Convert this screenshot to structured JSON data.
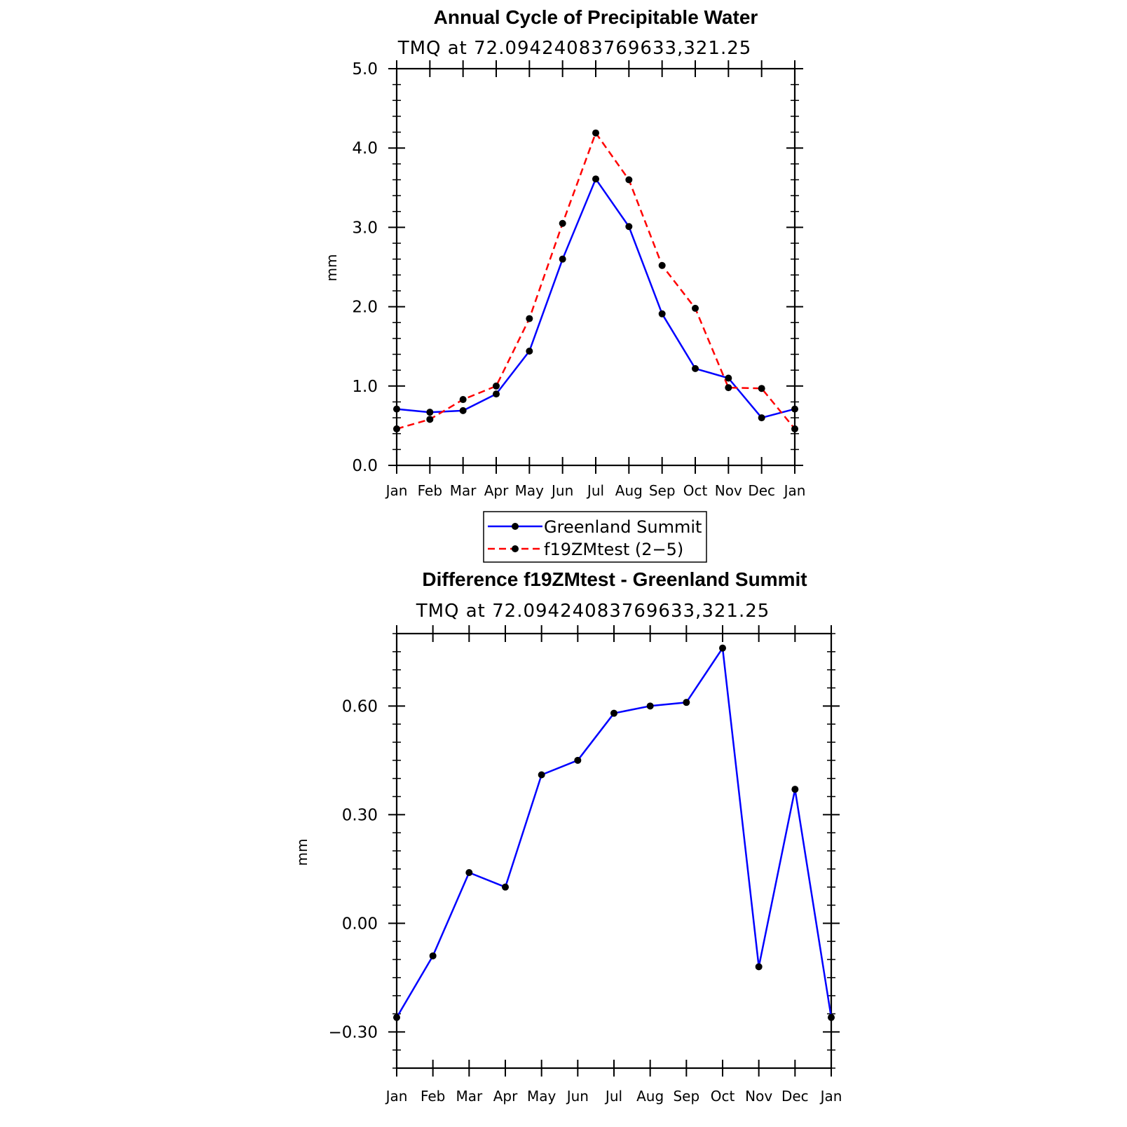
{
  "chart_data": [
    {
      "type": "line",
      "title": "Annual Cycle of Precipitable Water",
      "subtitle": "TMQ at 72.09424083769633,321.25",
      "xlabel": "",
      "ylabel": "mm",
      "categories": [
        "Jan",
        "Feb",
        "Mar",
        "Apr",
        "May",
        "Jun",
        "Jul",
        "Aug",
        "Sep",
        "Oct",
        "Nov",
        "Dec",
        "Jan"
      ],
      "ylim": [
        0.0,
        5.0
      ],
      "yticks": [
        0.0,
        1.0,
        2.0,
        3.0,
        4.0,
        5.0
      ],
      "ytick_labels": [
        "0.0",
        "1.0",
        "2.0",
        "3.0",
        "4.0",
        "5.0"
      ],
      "grid": false,
      "legend_position": "bottom-center",
      "series": [
        {
          "name": "Greenland Summit",
          "color": "#0000ff",
          "style": "solid",
          "values": [
            0.71,
            0.67,
            0.69,
            0.9,
            1.44,
            2.6,
            3.61,
            3.01,
            1.91,
            1.22,
            1.1,
            0.6,
            0.71
          ]
        },
        {
          "name": "f19ZMtest (2−5)",
          "color": "#ff0000",
          "style": "dashed",
          "values": [
            0.46,
            0.58,
            0.83,
            1.0,
            1.85,
            3.05,
            4.19,
            3.6,
            2.52,
            1.98,
            0.98,
            0.97,
            0.46
          ]
        }
      ]
    },
    {
      "type": "line",
      "title": "Difference f19ZMtest - Greenland Summit",
      "subtitle": "TMQ at 72.09424083769633,321.25",
      "xlabel": "",
      "ylabel": "mm",
      "categories": [
        "Jan",
        "Feb",
        "Mar",
        "Apr",
        "May",
        "Jun",
        "Jul",
        "Aug",
        "Sep",
        "Oct",
        "Nov",
        "Dec",
        "Jan"
      ],
      "ylim": [
        -0.4,
        0.8
      ],
      "yticks": [
        -0.3,
        0.0,
        0.3,
        0.6
      ],
      "ytick_labels": [
        "−0.30",
        "0.00",
        "0.30",
        "0.60"
      ],
      "grid": false,
      "series": [
        {
          "name": "Difference",
          "color": "#0000ff",
          "style": "solid",
          "values": [
            -0.26,
            -0.09,
            0.14,
            0.1,
            0.41,
            0.45,
            0.58,
            0.6,
            0.61,
            0.76,
            -0.12,
            0.37,
            -0.26
          ]
        }
      ]
    }
  ]
}
